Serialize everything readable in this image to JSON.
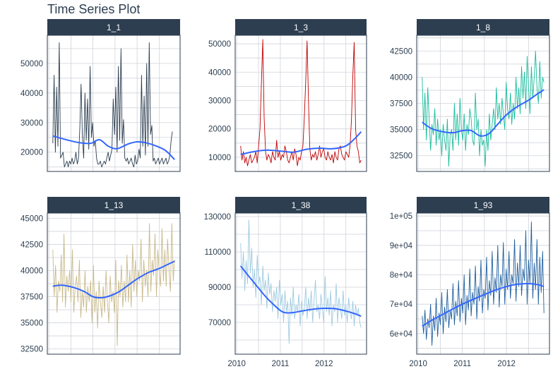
{
  "title": "Time Series Plot",
  "colors": {
    "strip_bg": "#2c3e50",
    "strip_text": "#ffffff",
    "grid": "#cfd3da",
    "panel_border": "#2c3e50",
    "axis_text": "#2c3e50",
    "smooth": "#3366ff"
  },
  "chart_data": [
    {
      "type": "line",
      "facet": "1_1",
      "color": "#2c3e50",
      "x_range": [
        2010.09,
        2012.85
      ],
      "ylim": [
        13500,
        59500
      ],
      "yticks": [
        20000,
        30000,
        40000,
        50000
      ],
      "ytick_labels": [
        "20000",
        "30000",
        "40000",
        "50000"
      ],
      "xticks": [],
      "xtick_labels": [],
      "smooth": {
        "x": [
          2010.09,
          2010.4,
          2010.7,
          2010.95,
          2011.15,
          2011.35,
          2011.55,
          2011.8,
          2012.0,
          2012.2,
          2012.45,
          2012.65,
          2012.85
        ],
        "y": [
          25500,
          24200,
          23200,
          23000,
          24200,
          22000,
          21200,
          22800,
          23500,
          23200,
          22000,
          20500,
          17500
        ]
      },
      "series": [
        {
          "x_start": 2010.09,
          "x_end": 2012.8,
          "values": [
            23000,
            46000,
            20000,
            42000,
            22000,
            57000,
            18000,
            19000,
            20000,
            15000,
            16000,
            17000,
            15000,
            17000,
            16000,
            18000,
            16000,
            17000,
            20000,
            16000,
            18000,
            28000,
            43000,
            26000,
            18000,
            40000,
            24000,
            38000,
            21000,
            49000,
            25000,
            30000,
            22000,
            24000,
            18000,
            16000,
            16000,
            17000,
            15000,
            16000,
            17000,
            16000,
            18000,
            20000,
            17000,
            19000,
            21000,
            38000,
            26000,
            42000,
            20000,
            49000,
            24000,
            55000,
            23000,
            31000,
            18000,
            17000,
            18000,
            16000,
            17000,
            18000,
            16000,
            15000,
            19000,
            16000,
            17000,
            21000,
            18000,
            46000,
            22000,
            39000,
            19000,
            50000,
            22000,
            57000,
            26000,
            29000,
            17000,
            18000,
            16000,
            17000,
            18000,
            16000,
            17000,
            18000,
            16000,
            17000,
            18000,
            16000,
            17000,
            19000,
            24000,
            27000
          ]
        }
      ]
    },
    {
      "type": "line",
      "facet": "1_3",
      "color": "#c00000",
      "x_range": [
        2010.09,
        2012.85
      ],
      "ylim": [
        5000,
        53000
      ],
      "yticks": [
        10000,
        20000,
        30000,
        40000,
        50000
      ],
      "ytick_labels": [
        "10000",
        "20000",
        "30000",
        "40000",
        "50000"
      ],
      "xticks": [],
      "xtick_labels": [],
      "smooth": {
        "x": [
          2010.09,
          2010.4,
          2010.7,
          2011.0,
          2011.3,
          2011.6,
          2011.9,
          2012.2,
          2012.5,
          2012.7,
          2012.85
        ],
        "y": [
          11000,
          12000,
          12500,
          12200,
          11800,
          12800,
          13200,
          13000,
          14000,
          16500,
          19000
        ]
      },
      "series": [
        {
          "x_start": 2010.09,
          "x_end": 2012.85,
          "values": [
            14000,
            9000,
            12000,
            8000,
            10000,
            7000,
            9000,
            11000,
            8000,
            9000,
            10000,
            12000,
            8000,
            14000,
            20000,
            36000,
            51500,
            24000,
            12000,
            9000,
            11000,
            10000,
            8000,
            12000,
            10000,
            9000,
            16000,
            10000,
            12000,
            9000,
            11000,
            10000,
            14000,
            12000,
            9000,
            8000,
            10000,
            12000,
            9000,
            13000,
            11000,
            7000,
            10000,
            9000,
            12000,
            14000,
            24000,
            37000,
            51000,
            30000,
            13000,
            9000,
            11000,
            10000,
            12000,
            9000,
            11000,
            14000,
            10000,
            12000,
            13000,
            10000,
            9000,
            12000,
            10000,
            9000,
            11000,
            8000,
            12000,
            10000,
            9000,
            13000,
            14000,
            11000,
            10000,
            9000,
            12000,
            11000,
            10000,
            14000,
            23000,
            39000,
            50500,
            20000,
            14000,
            12000,
            8000,
            9000
          ]
        }
      ]
    },
    {
      "type": "line",
      "facet": "1_8",
      "color": "#18bc9c",
      "x_range": [
        2010.09,
        2012.85
      ],
      "ylim": [
        31000,
        44000
      ],
      "yticks": [
        32500,
        35000,
        37500,
        40000,
        42500
      ],
      "ytick_labels": [
        "32500",
        "35000",
        "37500",
        "40000",
        "42500"
      ],
      "xticks": [],
      "xtick_labels": [],
      "smooth": {
        "x": [
          2010.09,
          2010.3,
          2010.55,
          2010.8,
          2011.0,
          2011.2,
          2011.4,
          2011.6,
          2011.8,
          2012.0,
          2012.25,
          2012.5,
          2012.7,
          2012.85
        ],
        "y": [
          35700,
          35100,
          34800,
          34700,
          34900,
          34900,
          34400,
          34600,
          35500,
          36400,
          37200,
          37800,
          38400,
          38800
        ]
      },
      "series": [
        {
          "x_start": 2010.09,
          "x_end": 2012.85,
          "values": [
            40000,
            35000,
            38500,
            34000,
            39000,
            36000,
            33000,
            35500,
            34500,
            37000,
            33500,
            36000,
            34000,
            35000,
            32500,
            35500,
            34000,
            33000,
            36000,
            31500,
            34500,
            35000,
            33000,
            37500,
            34000,
            36500,
            33500,
            38000,
            35000,
            34000,
            36500,
            33000,
            35500,
            34500,
            37000,
            36000,
            34000,
            33500,
            38500,
            35000,
            36000,
            32500,
            35000,
            33500,
            34000,
            31500,
            35000,
            33000,
            36500,
            34000,
            35500,
            37000,
            35000,
            39000,
            36000,
            37500,
            35500,
            38000,
            36500,
            35000,
            39500,
            37000,
            36000,
            38500,
            35500,
            37500,
            36000,
            40000,
            37000,
            39000,
            36500,
            41000,
            38000,
            40500,
            37000,
            42000,
            39000,
            36500,
            41000,
            38000,
            40000,
            42500,
            39000,
            37500,
            41500,
            38000,
            40000,
            39500
          ]
        }
      ]
    },
    {
      "type": "line",
      "facet": "1_13",
      "color": "#c8b98a",
      "x_range": [
        2010.09,
        2012.85
      ],
      "ylim": [
        32000,
        45500
      ],
      "yticks": [
        32500,
        35000,
        37500,
        40000,
        42500,
        45000
      ],
      "ytick_labels": [
        "32500",
        "35000",
        "37500",
        "40000",
        "42500",
        "45000"
      ],
      "xticks": [],
      "xtick_labels": [],
      "smooth": {
        "x": [
          2010.09,
          2010.3,
          2010.55,
          2010.8,
          2011.0,
          2011.2,
          2011.4,
          2011.6,
          2011.8,
          2012.0,
          2012.25,
          2012.5,
          2012.7,
          2012.85
        ],
        "y": [
          38500,
          38600,
          38400,
          38000,
          37500,
          37400,
          37600,
          38000,
          38600,
          39200,
          39800,
          40200,
          40600,
          40900
        ]
      },
      "series": [
        {
          "x_start": 2010.09,
          "x_end": 2012.85,
          "values": [
            42000,
            37500,
            40500,
            36000,
            39000,
            38000,
            41500,
            37000,
            43500,
            36500,
            39500,
            38000,
            40000,
            37000,
            42000,
            36000,
            38500,
            39500,
            37000,
            41000,
            35500,
            38000,
            36500,
            40000,
            36000,
            38500,
            37000,
            39000,
            35000,
            40500,
            36000,
            38000,
            34500,
            39000,
            37000,
            35500,
            38500,
            36000,
            40000,
            37000,
            35000,
            39500,
            37000,
            38000,
            36000,
            41000,
            32800,
            39000,
            37500,
            40500,
            36500,
            39000,
            37000,
            41500,
            37000,
            40000,
            36500,
            42500,
            38000,
            41000,
            37500,
            40000,
            39000,
            43000,
            37000,
            41000,
            38500,
            40000,
            37500,
            44500,
            38000,
            41000,
            39500,
            43500,
            37500,
            42000,
            40000,
            38500,
            44000,
            39000,
            42000,
            38500,
            43000,
            40000,
            38000,
            44500,
            39000,
            41000
          ]
        }
      ]
    },
    {
      "type": "line",
      "facet": "1_38",
      "color": "#9ecae1",
      "x_range": [
        2010.09,
        2012.85
      ],
      "ylim": [
        52000,
        132000
      ],
      "yticks": [
        70000,
        90000,
        110000,
        130000
      ],
      "ytick_labels": [
        "70000",
        "90000",
        "110000",
        "130000"
      ],
      "xticks": [
        2010,
        2011,
        2012
      ],
      "xtick_labels": [
        "2010",
        "2011",
        "2012"
      ],
      "smooth": {
        "x": [
          2010.09,
          2010.25,
          2010.45,
          2010.65,
          2010.85,
          2011.05,
          2011.25,
          2011.5,
          2011.75,
          2012.0,
          2012.25,
          2012.5,
          2012.7,
          2012.85
        ],
        "y": [
          102000,
          97000,
          91000,
          85000,
          80000,
          76000,
          75500,
          76500,
          77500,
          78000,
          77800,
          76500,
          75000,
          73500
        ]
      },
      "series": [
        {
          "x_start": 2010.09,
          "x_end": 2012.85,
          "values": [
            115000,
            95000,
            110000,
            88000,
            105000,
            92000,
            128000,
            98000,
            112000,
            90000,
            100000,
            84000,
            108000,
            92000,
            96000,
            80000,
            102000,
            88000,
            94000,
            78000,
            98000,
            86000,
            92000,
            76000,
            88000,
            82000,
            90000,
            72000,
            94000,
            80000,
            86000,
            70000,
            88000,
            76000,
            82000,
            58000,
            84000,
            74000,
            90000,
            72000,
            80000,
            76000,
            86000,
            68000,
            82000,
            74000,
            78000,
            90000,
            72000,
            84000,
            76000,
            88000,
            70000,
            82000,
            94000,
            76000,
            80000,
            72000,
            86000,
            78000,
            70000,
            96000,
            76000,
            84000,
            74000,
            88000,
            68000,
            80000,
            76000,
            92000,
            70000,
            84000,
            78000,
            72000,
            88000,
            74000,
            80000,
            70000,
            84000,
            76000,
            72000,
            82000,
            68000,
            80000,
            74000,
            78000,
            70000,
            67000
          ]
        }
      ]
    },
    {
      "type": "line",
      "facet": "1_93",
      "color": "#1f5f9e",
      "x_range": [
        2010.09,
        2012.85
      ],
      "ylim": [
        53000,
        101000
      ],
      "yticks": [
        60000,
        70000,
        80000,
        90000,
        100000
      ],
      "ytick_labels": [
        "6e+04",
        "7e+04",
        "8e+04",
        "9e+04",
        "1e+05"
      ],
      "xticks": [
        2010,
        2011,
        2012
      ],
      "xtick_labels": [
        "2010",
        "2011",
        "2012"
      ],
      "smooth": {
        "x": [
          2010.09,
          2010.3,
          2010.55,
          2010.8,
          2011.0,
          2011.25,
          2011.5,
          2011.75,
          2012.0,
          2012.25,
          2012.5,
          2012.7,
          2012.85
        ],
        "y": [
          62500,
          64500,
          66500,
          68500,
          70000,
          71700,
          73300,
          74800,
          76000,
          76800,
          77000,
          76700,
          76000
        ]
      },
      "series": [
        {
          "x_start": 2010.09,
          "x_end": 2012.85,
          "values": [
            66000,
            60000,
            68000,
            58000,
            65000,
            62000,
            70000,
            56000,
            66000,
            61000,
            72000,
            59000,
            67000,
            63000,
            74000,
            60000,
            69000,
            64000,
            75000,
            62000,
            68000,
            65000,
            77000,
            63000,
            71000,
            66000,
            78000,
            64000,
            72000,
            67000,
            80000,
            63000,
            73000,
            68000,
            82000,
            66000,
            74000,
            70000,
            83000,
            65000,
            76000,
            71000,
            85000,
            67000,
            75000,
            72000,
            86000,
            68000,
            78000,
            73000,
            88000,
            70000,
            79000,
            74000,
            90000,
            69000,
            80000,
            76000,
            91000,
            70000,
            82000,
            75000,
            88000,
            72000,
            80000,
            77000,
            92000,
            71000,
            84000,
            76000,
            90000,
            73000,
            82000,
            78000,
            95000,
            70000,
            85000,
            77000,
            98000,
            72000,
            84000,
            75000,
            92000,
            70000,
            86000,
            74000,
            88000,
            67000
          ]
        }
      ]
    }
  ]
}
